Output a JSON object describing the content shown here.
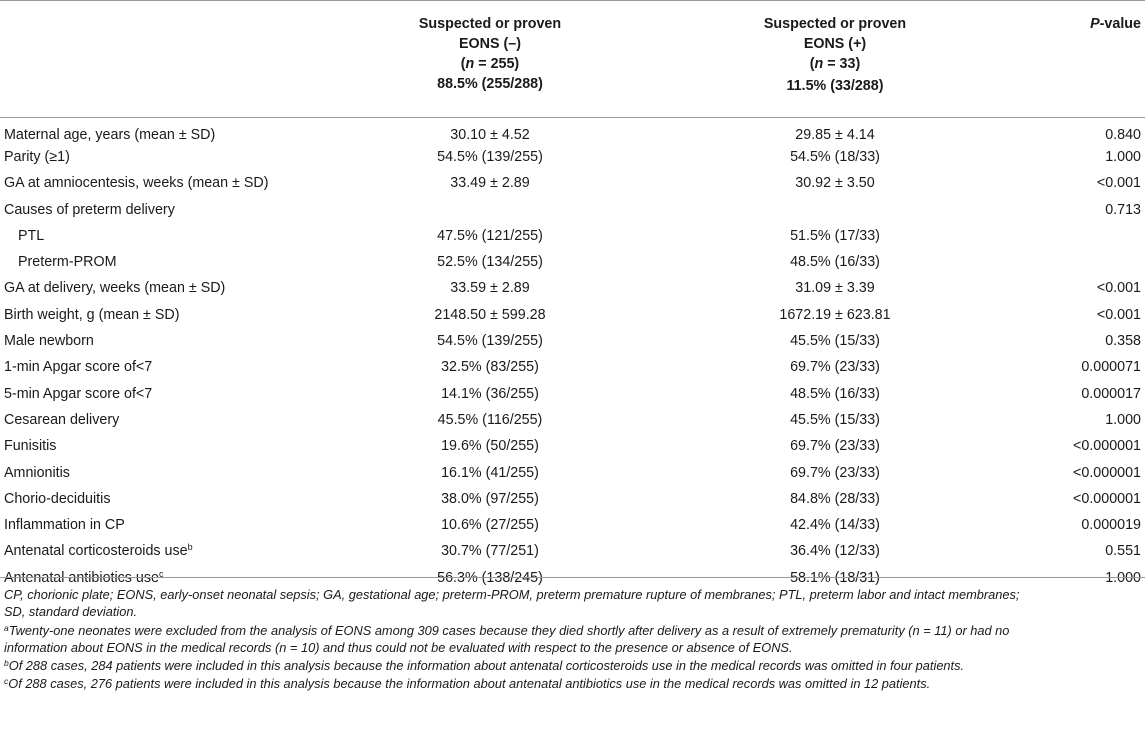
{
  "header": {
    "col_eons_neg": {
      "line1": "Suspected or proven",
      "line2": "EONS (–)",
      "n_label": "n",
      "n_value": " = 255)",
      "pct": "88.5% (255/288)"
    },
    "col_eons_pos": {
      "line1": "Suspected or proven",
      "line2": "EONS (+)",
      "n_label": "n",
      "n_value": " = 33)",
      "pct": "11.5% (33/288)"
    },
    "col_pvalue": {
      "p": "P",
      "rest": "-value"
    }
  },
  "rows": [
    {
      "label": "Maternal age, years (mean ± SD)",
      "neg": "30.10 ± 4.52",
      "pos": "29.85 ± 4.14",
      "p": "0.840"
    },
    {
      "label": "Parity (≥1)",
      "neg": "54.5% (139/255)",
      "pos": "54.5% (18/33)",
      "p": "1.000"
    },
    {
      "label": "GA at amniocentesis, weeks (mean ± SD)",
      "neg": "33.49 ± 2.89",
      "pos": "30.92 ± 3.50",
      "p": "<0.001"
    },
    {
      "label": "Causes of preterm delivery",
      "neg": "",
      "pos": "",
      "p": "0.713"
    },
    {
      "label": "PTL",
      "neg": "47.5% (121/255)",
      "pos": "51.5% (17/33)",
      "p": ""
    },
    {
      "label": "Preterm-PROM",
      "neg": "52.5% (134/255)",
      "pos": "48.5% (16/33)",
      "p": ""
    },
    {
      "label": "GA at delivery, weeks (mean ± SD)",
      "neg": "33.59 ± 2.89",
      "pos": "31.09 ± 3.39",
      "p": "<0.001"
    },
    {
      "label": "Birth weight, g (mean ± SD)",
      "neg": "2148.50 ± 599.28",
      "pos": "1672.19 ± 623.81",
      "p": "<0.001"
    },
    {
      "label": "Male newborn",
      "neg": "54.5% (139/255)",
      "pos": "45.5% (15/33)",
      "p": "0.358"
    },
    {
      "label": "1-min Apgar score of<7",
      "neg": "32.5% (83/255)",
      "pos": "69.7% (23/33)",
      "p": "0.000071"
    },
    {
      "label": "5-min Apgar score of<7",
      "neg": "14.1% (36/255)",
      "pos": "48.5% (16/33)",
      "p": "0.000017"
    },
    {
      "label": "Cesarean delivery",
      "neg": "45.5% (116/255)",
      "pos": "45.5% (15/33)",
      "p": "1.000"
    },
    {
      "label": "Funisitis",
      "neg": "19.6% (50/255)",
      "pos": "69.7% (23/33)",
      "p": "<0.000001"
    },
    {
      "label": "Amnionitis",
      "neg": "16.1% (41/255)",
      "pos": "69.7% (23/33)",
      "p": "<0.000001"
    },
    {
      "label": "Chorio-deciduitis",
      "neg": "38.0% (97/255)",
      "pos": "84.8% (28/33)",
      "p": "<0.000001"
    },
    {
      "label": "Inflammation in CP",
      "neg": "10.6% (27/255)",
      "pos": "42.4% (14/33)",
      "p": "0.000019"
    },
    {
      "label": "Antenatal corticosteroids use",
      "sup": "b",
      "neg": "30.7% (77/251)",
      "pos": "36.4% (12/33)",
      "p": "0.551"
    },
    {
      "label": "Antenatal antibiotics use",
      "sup": "c",
      "neg": "56.3% (138/245)",
      "pos": "58.1% (18/31)",
      "p": "1.000"
    }
  ],
  "footnotes": {
    "abbrev_1": "CP, chorionic plate; EONS, early-onset neonatal sepsis; GA, gestational age; preterm-PROM, preterm premature rupture of membranes; PTL, preterm labor and intact membranes;",
    "abbrev_2": "SD, standard deviation.",
    "a_mark": "a",
    "a_1": "Twenty-one neonates were excluded from the analysis of EONS among 309 cases because they died shortly after delivery as a result of extremely prematurity (n = 11) or had no",
    "a_2": "information about EONS in the medical records (n = 10) and thus could not be evaluated with respect to the presence or absence of EONS.",
    "b_mark": "b",
    "b_text": "Of 288 cases, 284 patients were included in this analysis because the information about antenatal corticosteroids use in the medical records was omitted in four patients.",
    "c_mark": "c",
    "c_text": "Of 288 cases, 276 patients were included in this analysis because the information about antenatal antibiotics use in the medical records was omitted in 12 patients."
  }
}
